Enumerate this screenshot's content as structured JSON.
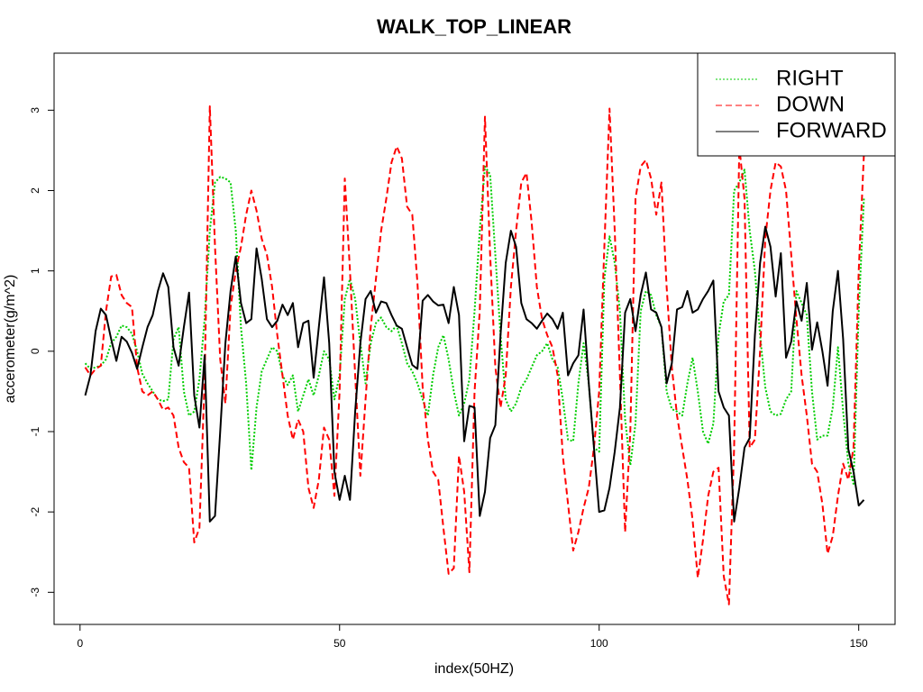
{
  "chart_data": {
    "type": "line",
    "title": "WALK_TOP_LINEAR",
    "x_label": "index(50HZ)",
    "y_label": "accerometer(g/m^2)",
    "x": [
      1,
      2,
      3,
      4,
      5,
      6,
      7,
      8,
      9,
      10,
      11,
      12,
      13,
      14,
      15,
      16,
      17,
      18,
      19,
      20,
      21,
      22,
      23,
      24,
      25,
      26,
      27,
      28,
      29,
      30,
      31,
      32,
      33,
      34,
      35,
      36,
      37,
      38,
      39,
      40,
      41,
      42,
      43,
      44,
      45,
      46,
      47,
      48,
      49,
      50,
      51,
      52,
      53,
      54,
      55,
      56,
      57,
      58,
      59,
      60,
      61,
      62,
      63,
      64,
      65,
      66,
      67,
      68,
      69,
      70,
      71,
      72,
      73,
      74,
      75,
      76,
      77,
      78,
      79,
      80,
      81,
      82,
      83,
      84,
      85,
      86,
      87,
      88,
      89,
      90,
      91,
      92,
      93,
      94,
      95,
      96,
      97,
      98,
      99,
      100,
      101,
      102,
      103,
      104,
      105,
      106,
      107,
      108,
      109,
      110,
      111,
      112,
      113,
      114,
      115,
      116,
      117,
      118,
      119,
      120,
      121,
      122,
      123,
      124,
      125,
      126,
      127,
      128,
      129,
      130,
      131,
      132,
      133,
      134,
      135,
      136,
      137,
      138,
      139,
      140,
      141,
      142,
      143,
      144,
      145,
      146,
      147,
      148,
      149,
      150,
      151
    ],
    "xlim": [
      -5,
      157
    ],
    "xticks": [
      0,
      50,
      100,
      150
    ],
    "ylim": [
      -3.4,
      3.71
    ],
    "yticks": [
      -3,
      -2,
      -1,
      0,
      1,
      2,
      3
    ],
    "legend": "topright",
    "series": [
      {
        "name": "RIGHT",
        "color": "#00cd00",
        "dash": "dotted",
        "values": [
          -0.15,
          -0.22,
          -0.2,
          -0.18,
          -0.1,
          0.1,
          0.18,
          0.32,
          0.3,
          0.22,
          0.0,
          -0.28,
          -0.4,
          -0.5,
          -0.6,
          -0.62,
          -0.6,
          0.15,
          0.3,
          -0.5,
          -0.8,
          -0.75,
          -0.35,
          0.4,
          1.5,
          2.1,
          2.17,
          2.15,
          2.1,
          1.5,
          0.3,
          -0.4,
          -1.48,
          -0.7,
          -0.25,
          -0.1,
          0.05,
          0.0,
          -0.3,
          -0.42,
          -0.3,
          -0.75,
          -0.55,
          -0.35,
          -0.55,
          -0.3,
          0.0,
          -0.1,
          -0.6,
          -0.3,
          0.65,
          0.9,
          0.65,
          0.1,
          -0.4,
          0.1,
          0.35,
          0.42,
          0.3,
          0.25,
          0.32,
          0.1,
          -0.15,
          -0.25,
          -0.4,
          -0.6,
          -0.8,
          -0.3,
          0.05,
          0.2,
          -0.1,
          -0.5,
          -0.8,
          -0.65,
          -0.35,
          0.5,
          1.5,
          2.3,
          2.2,
          1.2,
          0.2,
          -0.6,
          -0.75,
          -0.65,
          -0.45,
          -0.35,
          -0.2,
          -0.05,
          0.0,
          0.1,
          -0.1,
          -0.2,
          -0.6,
          -1.1,
          -1.12,
          -0.4,
          0.1,
          -0.4,
          -1.2,
          -1.25,
          0.9,
          1.43,
          1.1,
          0.5,
          -0.85,
          -1.42,
          -0.9,
          0.5,
          0.75,
          0.7,
          0.45,
          0.3,
          -0.5,
          -0.72,
          -0.75,
          -0.8,
          -0.4,
          -0.08,
          -0.5,
          -1.0,
          -1.15,
          -0.9,
          0.2,
          0.62,
          0.7,
          2.0,
          2.1,
          2.26,
          1.5,
          1.0,
          0.2,
          -0.45,
          -0.75,
          -0.8,
          -0.78,
          -0.6,
          -0.5,
          0.75,
          0.6,
          0.45,
          -0.5,
          -1.1,
          -1.05,
          -1.05,
          -0.7,
          0.05,
          -0.75,
          -1.4,
          -1.65,
          0.5,
          1.9
        ]
      },
      {
        "name": "DOWN",
        "color": "#ff0000",
        "dash": "dashed",
        "values": [
          -0.2,
          -0.3,
          -0.22,
          -0.18,
          0.5,
          0.93,
          0.95,
          0.7,
          0.6,
          0.55,
          -0.2,
          -0.5,
          -0.55,
          -0.5,
          -0.6,
          -0.73,
          -0.7,
          -0.8,
          -1.2,
          -1.38,
          -1.45,
          -2.38,
          -2.2,
          -0.35,
          3.05,
          1.3,
          -0.1,
          -0.65,
          0.55,
          1.0,
          1.3,
          1.7,
          2.0,
          1.75,
          1.4,
          1.2,
          0.8,
          0.2,
          -0.3,
          -0.8,
          -1.1,
          -0.85,
          -1.0,
          -1.7,
          -1.95,
          -1.6,
          -0.95,
          -1.1,
          -1.8,
          -0.5,
          2.15,
          1.0,
          -0.3,
          -1.55,
          -0.6,
          0.3,
          0.9,
          1.5,
          1.9,
          2.35,
          2.55,
          2.4,
          1.8,
          1.7,
          0.85,
          -0.45,
          -1.1,
          -1.5,
          -1.6,
          -2.2,
          -2.77,
          -2.7,
          -1.3,
          -1.75,
          -2.75,
          -0.5,
          0.5,
          2.92,
          1.2,
          -0.2,
          -0.7,
          -0.3,
          0.8,
          1.5,
          2.1,
          2.22,
          1.6,
          0.8,
          0.4,
          0.2,
          0.05,
          -0.3,
          -1.3,
          -1.9,
          -2.48,
          -2.25,
          -1.95,
          -1.7,
          -1.2,
          -0.5,
          1.3,
          3.02,
          1.5,
          -0.3,
          -2.25,
          -1.0,
          1.9,
          2.3,
          2.38,
          2.15,
          1.7,
          2.1,
          0.8,
          -0.2,
          -0.8,
          -1.2,
          -1.6,
          -2.1,
          -2.82,
          -2.35,
          -1.8,
          -1.5,
          -1.45,
          -2.8,
          -3.15,
          -1.2,
          2.55,
          1.9,
          -1.2,
          -1.1,
          0.0,
          1.4,
          2.0,
          2.35,
          2.3,
          2.0,
          1.2,
          0.4,
          -0.3,
          -0.8,
          -1.4,
          -1.5,
          -1.9,
          -2.52,
          -2.3,
          -1.8,
          -1.4,
          -1.6,
          -1.2,
          1.0,
          2.45
        ]
      },
      {
        "name": "FORWARD",
        "color": "#000000",
        "dash": "solid",
        "values": [
          -0.55,
          -0.3,
          0.25,
          0.53,
          0.45,
          0.15,
          -0.12,
          0.18,
          0.12,
          -0.02,
          -0.22,
          0.05,
          0.3,
          0.45,
          0.75,
          0.97,
          0.8,
          0.05,
          -0.18,
          0.3,
          0.73,
          -0.55,
          -0.95,
          -0.05,
          -2.12,
          -2.05,
          -1.0,
          0.1,
          0.75,
          1.18,
          0.6,
          0.35,
          0.4,
          1.28,
          0.9,
          0.4,
          0.3,
          0.38,
          0.58,
          0.45,
          0.6,
          0.05,
          0.35,
          0.38,
          -0.33,
          0.3,
          0.92,
          0.1,
          -1.5,
          -1.85,
          -1.55,
          -1.85,
          -0.75,
          0.1,
          0.65,
          0.75,
          0.48,
          0.62,
          0.6,
          0.45,
          0.32,
          0.28,
          0.05,
          -0.17,
          -0.22,
          0.63,
          0.7,
          0.62,
          0.57,
          0.58,
          0.35,
          0.8,
          0.45,
          -1.12,
          -0.68,
          -0.7,
          -2.05,
          -1.75,
          -1.08,
          -0.92,
          0.2,
          1.1,
          1.5,
          1.3,
          0.6,
          0.4,
          0.35,
          0.28,
          0.38,
          0.47,
          0.4,
          0.28,
          0.48,
          -0.3,
          -0.15,
          -0.05,
          0.52,
          -0.4,
          -1.2,
          -2.0,
          -1.98,
          -1.7,
          -1.25,
          -0.7,
          0.48,
          0.65,
          0.25,
          0.7,
          0.98,
          0.52,
          0.48,
          0.3,
          -0.4,
          -0.15,
          0.52,
          0.55,
          0.75,
          0.48,
          0.52,
          0.65,
          0.75,
          0.88,
          -0.5,
          -0.7,
          -0.8,
          -2.12,
          -1.7,
          -1.2,
          -1.08,
          0.2,
          1.1,
          1.55,
          1.3,
          0.68,
          1.22,
          -0.08,
          0.12,
          0.62,
          0.38,
          0.85,
          0.02,
          0.36,
          0.0,
          -0.43,
          0.5,
          1.0,
          0.15,
          -1.22,
          -1.5,
          -1.92,
          -1.85
        ]
      }
    ]
  }
}
